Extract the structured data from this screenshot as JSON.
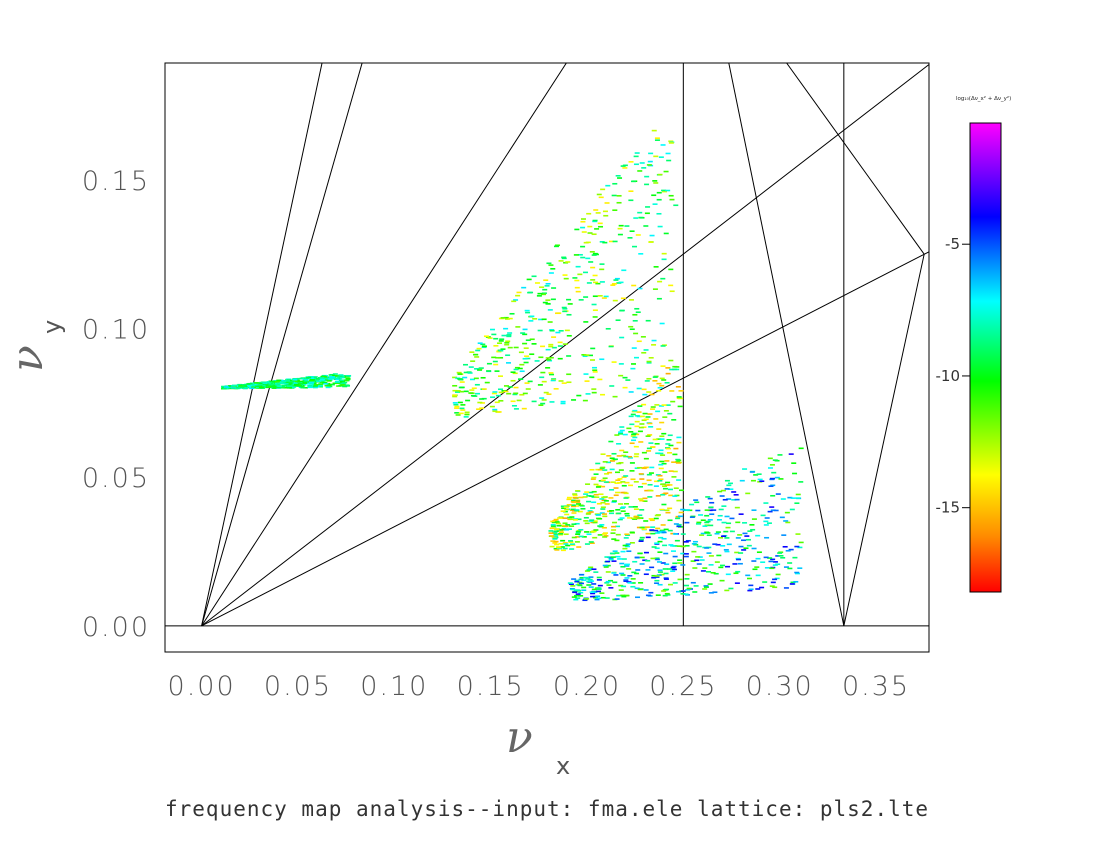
{
  "chart_data": {
    "type": "scatter",
    "title": "",
    "caption": "frequency map analysis--input: fma.ele  lattice: pls2.lte",
    "xlabel": {
      "symbol": "ν",
      "subscript": "x"
    },
    "ylabel": {
      "symbol": "ν",
      "subscript": "y"
    },
    "xlim": [
      -0.019,
      0.3775
    ],
    "ylim": [
      -0.0088,
      0.1893
    ],
    "x_ticks": [
      "0.00",
      "0.05",
      "0.10",
      "0.15",
      "0.20",
      "0.25",
      "0.30",
      "0.35"
    ],
    "x_tick_values": [
      0.0,
      0.05,
      0.1,
      0.15,
      0.2,
      0.25,
      0.3,
      0.35
    ],
    "y_ticks": [
      "0.00",
      "0.05",
      "0.10",
      "0.15"
    ],
    "y_tick_values": [
      0.0,
      0.05,
      0.1,
      0.15
    ],
    "colorbar": {
      "label": "log₁₀(Δν_x² + Δν_y²)",
      "range": [
        -18.2,
        -0.4
      ],
      "ticks": [
        "-5",
        "-10",
        "-15"
      ],
      "tick_values": [
        -5,
        -10,
        -15
      ],
      "colormap": [
        "#ff0000",
        "#ffa000",
        "#ffff00",
        "#00ff00",
        "#00ffff",
        "#0000ff",
        "#ff00ff"
      ]
    },
    "resonance_lines": [
      {
        "x": [
          0.0,
          0.0625
        ],
        "y": [
          0.0,
          0.1893
        ]
      },
      {
        "x": [
          0.0,
          0.0833
        ],
        "y": [
          0.0,
          0.1893
        ]
      },
      {
        "x": [
          0.0,
          0.1893
        ],
        "y": [
          0.0,
          0.1893
        ]
      },
      {
        "x": [
          0.0,
          0.3775
        ],
        "y": [
          0.0,
          0.1888
        ]
      },
      {
        "x": [
          0.0,
          0.3775
        ],
        "y": [
          0.0,
          0.1258
        ]
      },
      {
        "x": [
          0.25,
          0.25
        ],
        "y": [
          0.0,
          0.1893
        ]
      },
      {
        "x": [
          0.3333,
          0.3333
        ],
        "y": [
          0.0,
          0.1893
        ]
      },
      {
        "x": [
          -0.019,
          0.3775
        ],
        "y": [
          0.0,
          0.0
        ]
      },
      {
        "x": [
          0.2736,
          0.3333
        ],
        "y": [
          0.1893,
          0.0
        ]
      },
      {
        "x": [
          0.3036,
          0.375
        ],
        "y": [
          0.1893,
          0.125
        ]
      },
      {
        "x": [
          0.3333,
          0.375
        ],
        "y": [
          0.0,
          0.125
        ]
      }
    ],
    "point_clusters": [
      {
        "x": [
          0.13,
          0.245
        ],
        "y": [
          0.07,
          0.17
        ],
        "log_diffusion": [
          -13,
          -6
        ]
      },
      {
        "x": [
          0.18,
          0.248
        ],
        "y": [
          0.025,
          0.09
        ],
        "log_diffusion": [
          -15,
          -6
        ]
      },
      {
        "x": [
          0.19,
          0.31
        ],
        "y": [
          0.008,
          0.06
        ],
        "log_diffusion": [
          -11,
          -3
        ]
      },
      {
        "x": [
          0.01,
          0.075
        ],
        "y": [
          0.08,
          0.085
        ],
        "log_diffusion": [
          -10,
          -6
        ]
      }
    ]
  }
}
